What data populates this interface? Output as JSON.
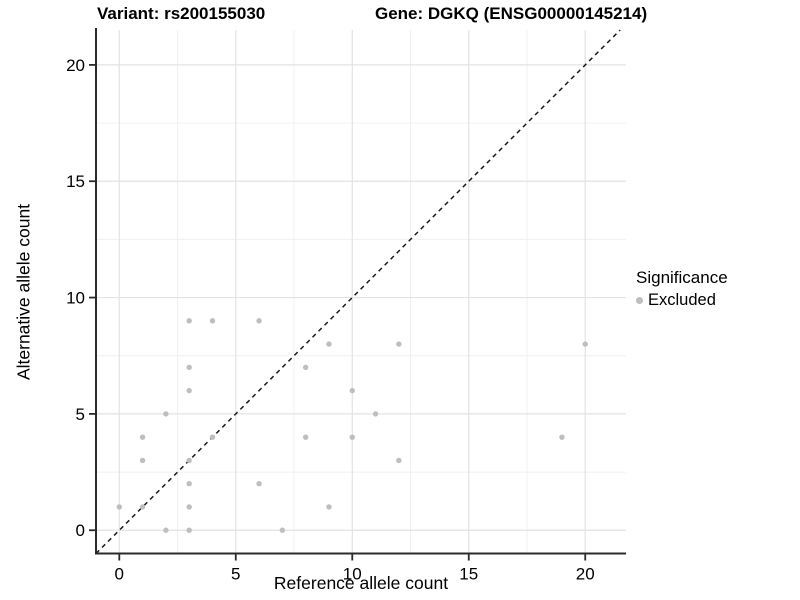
{
  "title": {
    "left": "Variant: rs200155030",
    "right": "Gene: DGKQ (ENSG00000145214)"
  },
  "chart_data": {
    "type": "scatter",
    "title": "Variant: rs200155030 — Gene: DGKQ (ENSG00000145214)",
    "xlabel": "Reference allele count",
    "ylabel": "Alternative allele count",
    "xlim": [
      -1,
      21.75
    ],
    "ylim": [
      -1,
      21.5
    ],
    "x_ticks": [
      0,
      5,
      10,
      15,
      20
    ],
    "x_tick_labels": [
      "0",
      "5",
      "10",
      "15",
      "20"
    ],
    "y_ticks": [
      0,
      5,
      10,
      15,
      20
    ],
    "y_tick_labels": [
      "0",
      "5",
      "10",
      "15",
      "20"
    ],
    "x_minor_ticks": [
      2.5,
      7.5,
      12.5,
      17.5
    ],
    "y_minor_ticks": [
      2.5,
      7.5,
      12.5,
      17.5
    ],
    "grid": true,
    "legend_position": "right",
    "identity_line": {
      "slope": 1,
      "intercept": 0,
      "style": "dashed",
      "color": "#1a1a1a"
    },
    "series": [
      {
        "name": "Excluded",
        "color": "#bebebe",
        "points": [
          [
            0,
            1
          ],
          [
            1,
            1
          ],
          [
            1,
            3
          ],
          [
            1,
            4
          ],
          [
            2,
            0
          ],
          [
            2,
            5
          ],
          [
            3,
            0
          ],
          [
            3,
            1
          ],
          [
            3,
            2
          ],
          [
            3,
            3
          ],
          [
            3,
            6
          ],
          [
            3,
            7
          ],
          [
            3,
            9
          ],
          [
            4,
            4
          ],
          [
            4,
            9
          ],
          [
            6,
            2
          ],
          [
            6,
            9
          ],
          [
            7,
            0
          ],
          [
            8,
            4
          ],
          [
            8,
            7
          ],
          [
            9,
            1
          ],
          [
            9,
            8
          ],
          [
            10,
            4
          ],
          [
            10,
            6
          ],
          [
            11,
            5
          ],
          [
            12,
            3
          ],
          [
            12,
            8
          ],
          [
            19,
            4
          ],
          [
            20,
            8
          ]
        ]
      }
    ],
    "legend": {
      "title": "Significance",
      "entries": [
        {
          "label": "Excluded",
          "color": "#bebebe"
        }
      ]
    }
  },
  "colors": {
    "point": "#bebebe",
    "grid_major": "#e3e3e3",
    "grid_minor": "#f0f0f0",
    "axis_line": "#2b2b2b",
    "tick_label": "#000000",
    "dashed_line": "#1a1a1a",
    "background": "#ffffff"
  }
}
